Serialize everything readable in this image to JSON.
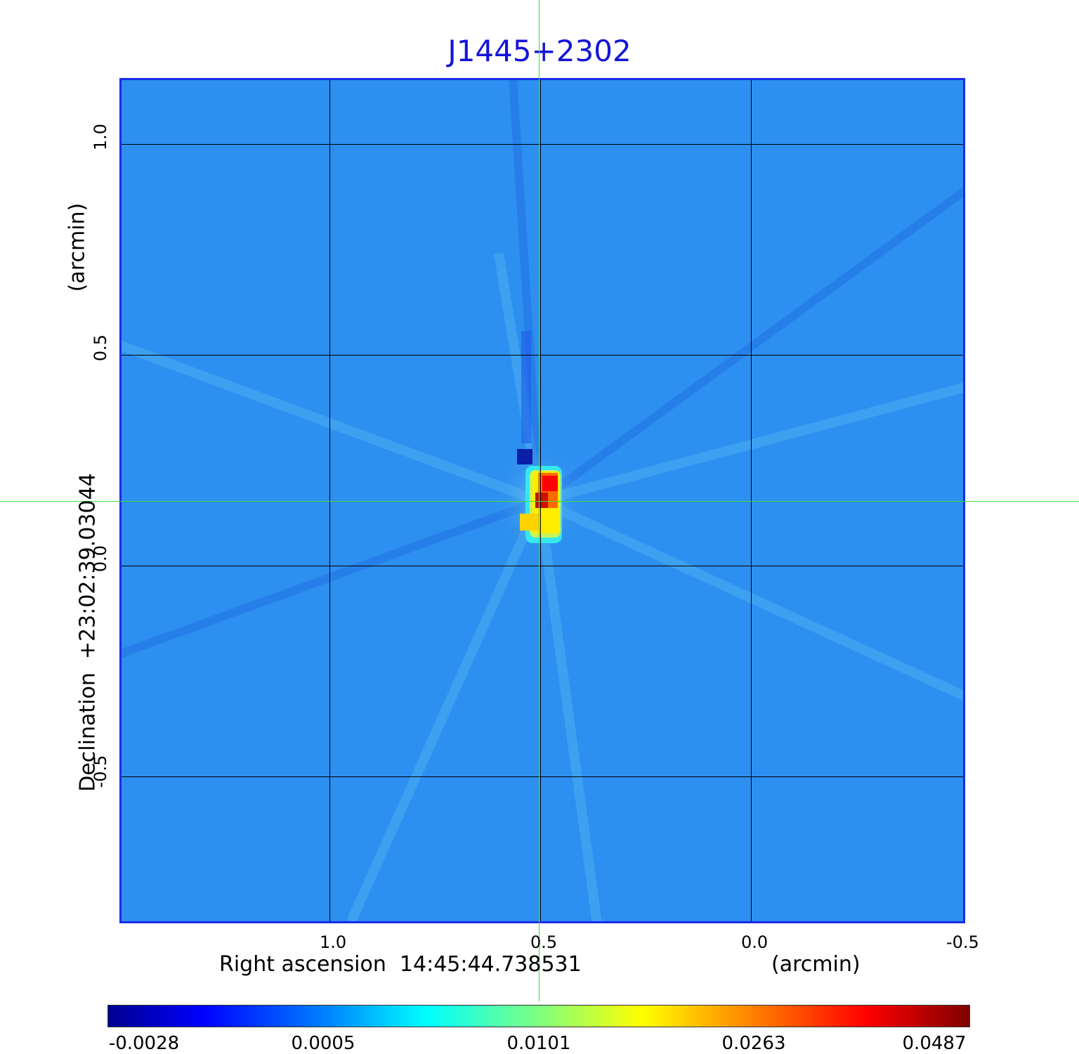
{
  "title": "J1445+2302",
  "xaxis": {
    "label": "Right ascension  14:45:44.738531",
    "unit": "(arcmin)",
    "ticks": [
      "1.0",
      "0.5",
      "0.0",
      "-0.5"
    ]
  },
  "yaxis": {
    "label": "Declination  +23:02:39.03044",
    "unit": "(arcmin)",
    "ticks": [
      "1.0",
      "0.5",
      "0.0",
      "-0.5"
    ]
  },
  "colorbar": {
    "ticks": [
      "-0.0028",
      "0.0005",
      "0.0101",
      "0.0263",
      "0.0487"
    ],
    "colors": [
      "#00008f",
      "#0000ff",
      "#007fff",
      "#00ffff",
      "#7fff7f",
      "#ffff00",
      "#ff7f00",
      "#ff0000",
      "#7f0000"
    ]
  },
  "chart_data": {
    "type": "heatmap",
    "title": "J1445+2302",
    "xlabel": "Right ascension  14:45:44.738531 (arcmin)",
    "ylabel": "Declination  +23:02:39.03044 (arcmin)",
    "x_ticks": [
      1.0,
      0.5,
      0.0,
      -0.5
    ],
    "y_ticks": [
      1.0,
      0.5,
      0.0,
      -0.5
    ],
    "xlim": [
      1.5,
      -0.5
    ],
    "ylim": [
      -0.85,
      1.15
    ],
    "color_range": [
      -0.0028,
      0.0487
    ],
    "colormap": "jet",
    "grid": true,
    "crosshair": {
      "x": 0.5,
      "y": 0.15
    },
    "source_peak": {
      "x": 0.48,
      "y": 0.18,
      "value": 0.0487
    },
    "background_value": 0.0005
  }
}
